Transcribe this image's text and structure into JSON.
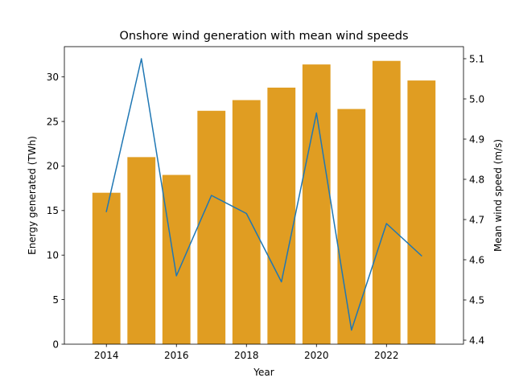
{
  "chart_data": {
    "type": "bar",
    "title": "Onshore wind generation with mean wind speeds",
    "xlabel": "Year",
    "ylabel": "Energy generated (TWh)",
    "y2label": "Mean wind speed (m/s)",
    "x": [
      2014,
      2015,
      2016,
      2017,
      2018,
      2019,
      2020,
      2021,
      2022,
      2023
    ],
    "xlim": [
      2012.8,
      2024.2
    ],
    "x_ticks": [
      2014,
      2016,
      2018,
      2020,
      2022
    ],
    "ylim": [
      0,
      33.4
    ],
    "y_ticks": [
      0,
      5,
      10,
      15,
      20,
      25,
      30
    ],
    "y2lim": [
      4.39,
      5.13
    ],
    "y2_ticks": [
      4.4,
      4.5,
      4.6,
      4.7,
      4.8,
      4.9,
      5.0,
      5.1
    ],
    "series": [
      {
        "type": "bar",
        "axis": "left",
        "color": "#e09d22",
        "values": [
          17.0,
          21.0,
          19.0,
          26.2,
          27.4,
          28.8,
          31.4,
          26.4,
          31.8,
          29.6
        ]
      },
      {
        "type": "line",
        "axis": "right",
        "color": "#1f77b4",
        "values": [
          4.72,
          5.1,
          4.56,
          4.76,
          4.715,
          4.545,
          4.965,
          4.425,
          4.69,
          4.61
        ]
      }
    ],
    "grid": false,
    "legend": "none"
  }
}
